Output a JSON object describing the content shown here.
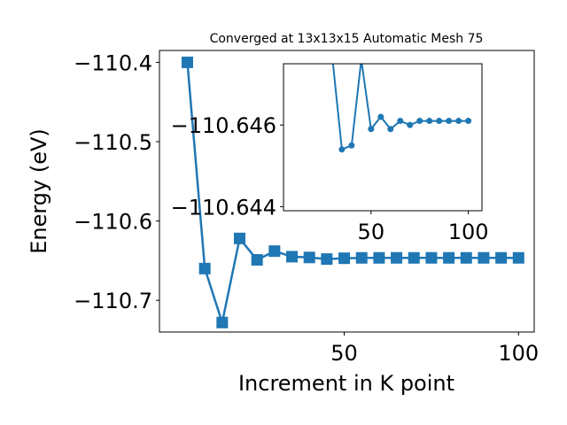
{
  "chart_data": [
    {
      "type": "line",
      "title": "Converged at 13x13x15 Automatic Mesh 75",
      "xlabel": "Increment in K point",
      "ylabel": "Energy (eV)",
      "xlim": [
        -3,
        104.5
      ],
      "ylim": [
        -110.74,
        -110.385
      ],
      "xticks": [
        50,
        100
      ],
      "yticks": [
        -110.4,
        -110.5,
        -110.6,
        -110.7
      ],
      "xtick_labels": [
        "50",
        "100"
      ],
      "ytick_labels": [
        "−110.4",
        "−110.5",
        "−110.6",
        "−110.7"
      ],
      "grid": false,
      "series": [
        {
          "marker": "square",
          "color": "#1f77b4",
          "x": [
            5,
            10,
            15,
            20,
            25,
            30,
            35,
            40,
            45,
            50,
            55,
            60,
            65,
            70,
            75,
            80,
            85,
            90,
            95,
            100
          ],
          "y": [
            -110.4,
            -110.66,
            -110.728,
            -110.622,
            -110.649,
            -110.638,
            -110.645,
            -110.646,
            -110.648,
            -110.647,
            -110.6465,
            -110.6465,
            -110.6465,
            -110.6465,
            -110.6465,
            -110.6465,
            -110.6465,
            -110.6465,
            -110.6465,
            -110.6465
          ]
        }
      ]
    },
    {
      "type": "line",
      "title": "",
      "xlabel": "",
      "ylabel": "",
      "xlim": [
        5,
        107
      ],
      "ylim": [
        -110.6439,
        -110.6475
      ],
      "xticks": [
        50,
        100
      ],
      "yticks": [
        -110.646,
        -110.644
      ],
      "xtick_labels": [
        "50",
        "100"
      ],
      "ytick_labels": [
        "−110.646",
        "−110.644"
      ],
      "grid": false,
      "series": [
        {
          "marker": "circle",
          "color": "#1f77b4",
          "x": [
            25,
            35,
            40,
            45,
            50,
            55,
            60,
            65,
            70,
            75,
            80,
            85,
            90,
            95,
            100
          ],
          "y": [
            -110.65,
            -110.6454,
            -110.6455,
            -110.6476,
            -110.6459,
            -110.6462,
            -110.6459,
            -110.6461,
            -110.646,
            -110.6461,
            -110.6461,
            -110.6461,
            -110.6461,
            -110.6461,
            -110.6461
          ]
        }
      ]
    }
  ]
}
